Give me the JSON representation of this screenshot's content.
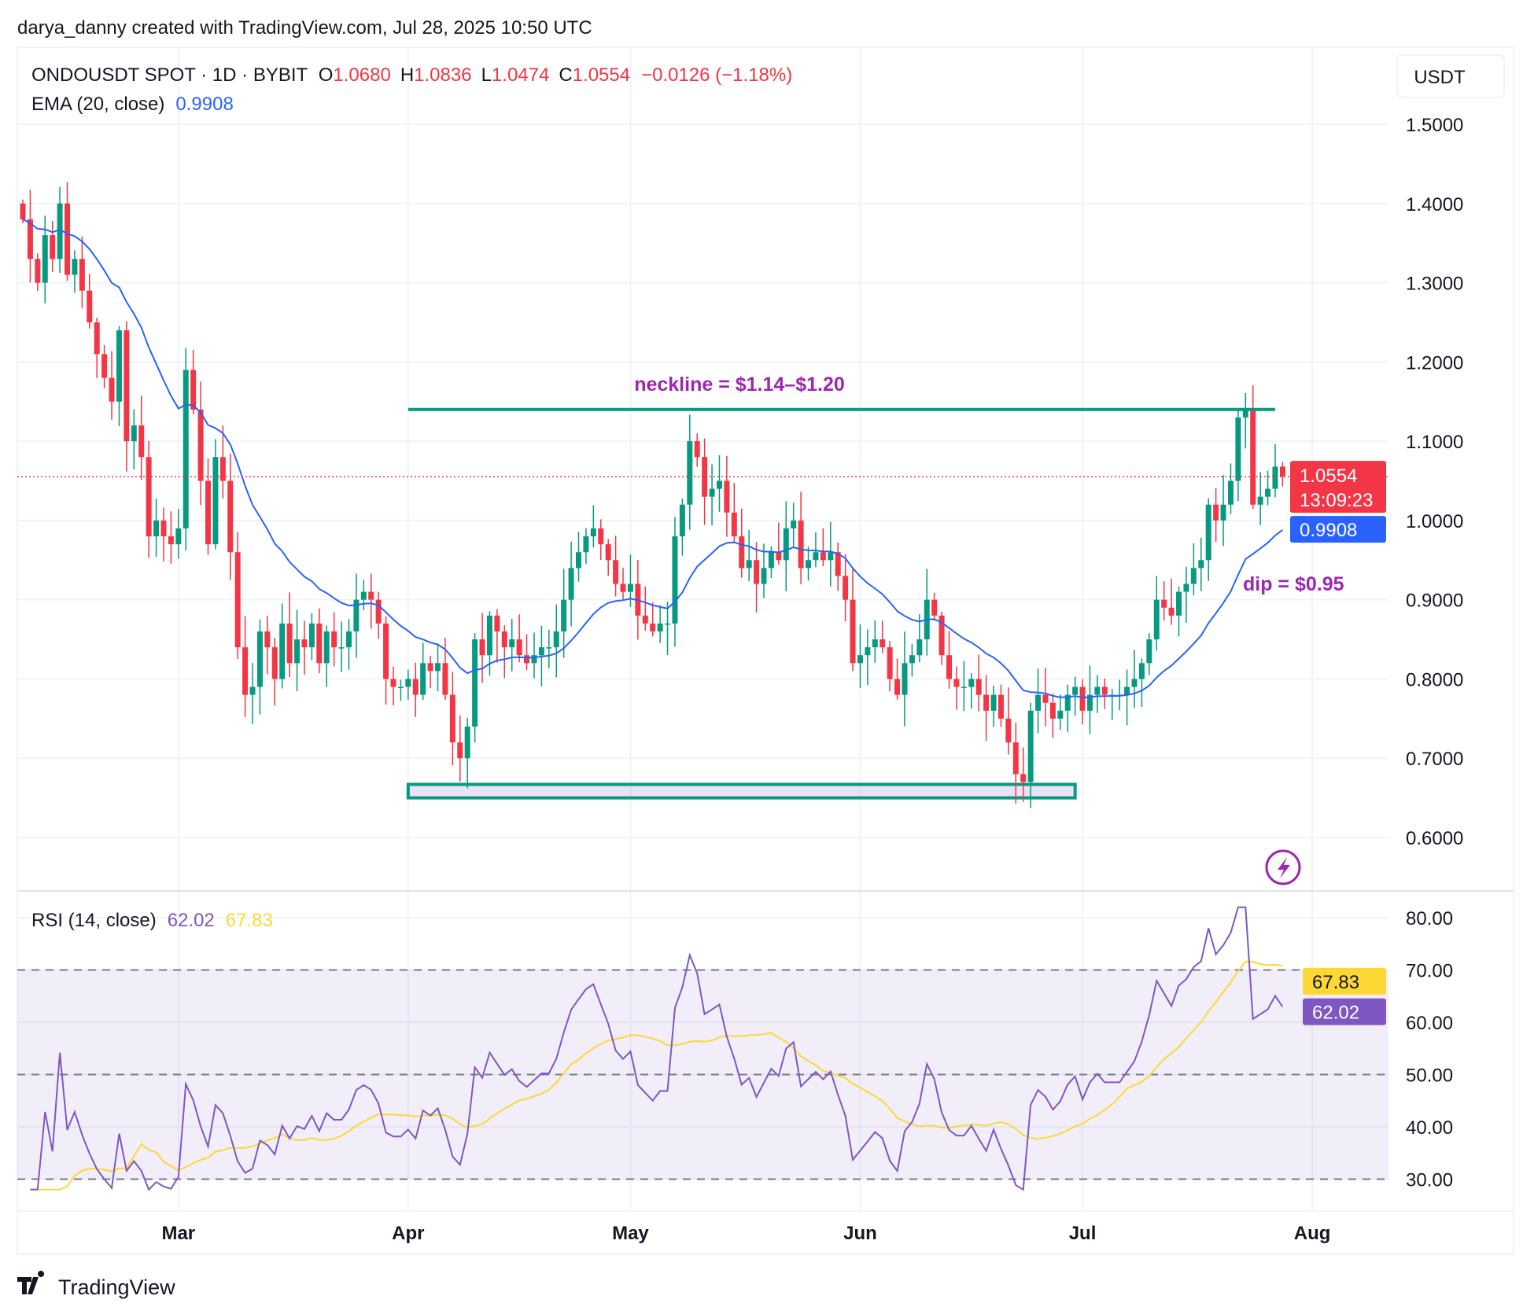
{
  "header": {
    "attribution": "darya_danny created with TradingView.com, Jul 28, 2025 10:50 UTC"
  },
  "legend": {
    "symbol": "ONDOUSDT SPOT · 1D · BYBIT",
    "o_label": "O",
    "o": "1.0680",
    "h_label": "H",
    "h": "1.0836",
    "l_label": "L",
    "l": "1.0474",
    "c_label": "C",
    "c": "1.0554",
    "change": "−0.0126 (−1.18%)",
    "ema_label": "EMA (20, close)",
    "ema_value": "0.9908",
    "rsi_label": "RSI (14, close)",
    "rsi_value": "62.02",
    "rsi_ma_value": "67.83"
  },
  "currency": "USDT",
  "last_price": {
    "price": "1.0554",
    "countdown": "13:09:23"
  },
  "annotations": {
    "neckline": "neckline = $1.14–$1.20",
    "dip": "dip = $0.95"
  },
  "footer": {
    "brand": "TradingView"
  },
  "colors": {
    "up": "#089981",
    "down": "#f23645",
    "ema": "#2962ff",
    "rsi": "#7e57c2",
    "rsi_ma": "#fdd835",
    "annotation": "#9c27b0",
    "neckline": "#089981"
  },
  "chart_data": {
    "type": "candlestick",
    "start_date": "2025-02-08",
    "interval": "1D",
    "close": [
      1.38,
      1.33,
      1.3,
      1.36,
      1.33,
      1.4,
      1.31,
      1.33,
      1.29,
      1.25,
      1.21,
      1.18,
      1.15,
      1.24,
      1.1,
      1.12,
      1.08,
      0.98,
      1.0,
      0.98,
      0.97,
      0.99,
      1.19,
      1.14,
      1.05,
      0.97,
      1.08,
      1.05,
      0.96,
      0.84,
      0.78,
      0.79,
      0.86,
      0.84,
      0.8,
      0.87,
      0.82,
      0.85,
      0.84,
      0.87,
      0.82,
      0.86,
      0.84,
      0.84,
      0.86,
      0.9,
      0.91,
      0.9,
      0.87,
      0.8,
      0.79,
      0.79,
      0.8,
      0.78,
      0.82,
      0.81,
      0.82,
      0.78,
      0.72,
      0.7,
      0.74,
      0.85,
      0.83,
      0.88,
      0.86,
      0.84,
      0.85,
      0.83,
      0.82,
      0.83,
      0.84,
      0.84,
      0.86,
      0.9,
      0.94,
      0.96,
      0.98,
      0.99,
      0.97,
      0.95,
      0.92,
      0.91,
      0.92,
      0.88,
      0.87,
      0.86,
      0.87,
      0.87,
      0.98,
      1.02,
      1.1,
      1.08,
      1.03,
      1.04,
      1.05,
      1.01,
      0.98,
      0.94,
      0.95,
      0.92,
      0.94,
      0.96,
      0.95,
      0.99,
      1.0,
      0.94,
      0.95,
      0.96,
      0.95,
      0.96,
      0.93,
      0.9,
      0.82,
      0.83,
      0.84,
      0.85,
      0.84,
      0.8,
      0.78,
      0.82,
      0.83,
      0.85,
      0.9,
      0.88,
      0.83,
      0.8,
      0.79,
      0.79,
      0.8,
      0.78,
      0.76,
      0.78,
      0.75,
      0.72,
      0.68,
      0.67,
      0.76,
      0.78,
      0.77,
      0.75,
      0.76,
      0.78,
      0.79,
      0.76,
      0.78,
      0.79,
      0.78,
      0.78,
      0.78,
      0.79,
      0.8,
      0.82,
      0.85,
      0.9,
      0.89,
      0.88,
      0.91,
      0.92,
      0.94,
      0.95,
      1.02,
      1.0,
      1.02,
      1.05,
      1.13,
      1.14,
      1.02,
      1.03,
      1.04,
      1.068,
      1.0554
    ],
    "first_open": 1.4,
    "price_axis": {
      "ticks": [
        "1.5000",
        "1.4000",
        "1.3000",
        "1.2000",
        "1.1000",
        "1.0000",
        "0.9000",
        "0.8000",
        "0.7000",
        "0.6000"
      ],
      "range": [
        0.56,
        1.54
      ]
    },
    "rsi_axis": {
      "ticks": [
        "80.00",
        "70.00",
        "60.00",
        "50.00",
        "40.00",
        "30.00"
      ],
      "band": [
        30,
        70
      ],
      "dashed_levels": [
        70,
        50,
        30
      ]
    },
    "time_axis": {
      "ticks": [
        {
          "label": "Mar",
          "date": "2025-03-01"
        },
        {
          "label": "Apr",
          "date": "2025-04-01"
        },
        {
          "label": "May",
          "date": "2025-05-01"
        },
        {
          "label": "Jun",
          "date": "2025-06-01"
        },
        {
          "label": "Jul",
          "date": "2025-07-01"
        },
        {
          "label": "Aug",
          "date": "2025-08-01"
        }
      ]
    },
    "neckline": {
      "price": 1.14,
      "from": "2025-04-01",
      "to": "2025-07-27"
    },
    "support_zone": {
      "low": 0.65,
      "high": 0.667,
      "from": "2025-04-01",
      "to": "2025-06-30"
    }
  }
}
